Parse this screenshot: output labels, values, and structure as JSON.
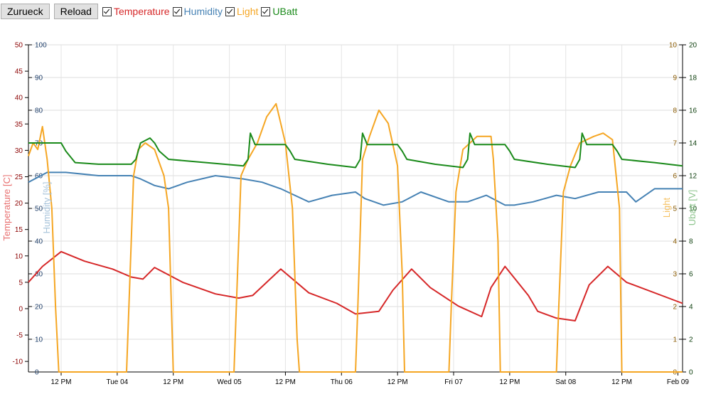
{
  "toolbar": {
    "back_label": "Zurueck",
    "reload_label": "Reload",
    "series_toggles": [
      {
        "label": "Temperature",
        "color": "#d62728",
        "checked": true
      },
      {
        "label": "Humidity",
        "color": "#4682b4",
        "checked": true
      },
      {
        "label": "Light",
        "color": "#f5a623",
        "checked": true
      },
      {
        "label": "UBatt",
        "color": "#1a8a1a",
        "checked": true
      }
    ]
  },
  "chart_data": {
    "type": "line",
    "x_tick_labels": [
      "12 PM",
      "Tue 04",
      "12 PM",
      "Wed 05",
      "12 PM",
      "Thu 06",
      "12 PM",
      "Fri 07",
      "12 PM",
      "Sat 08",
      "12 PM",
      "Feb 09"
    ],
    "axes": {
      "temperature": {
        "label": "Temperature [C]",
        "color": "#d62728",
        "range": [
          -12,
          50
        ],
        "ticks": [
          -10,
          -5,
          0,
          5,
          10,
          15,
          20,
          25,
          30,
          35,
          40,
          45,
          50
        ]
      },
      "humidity": {
        "label": "Humidity [%]",
        "color": "#4682b4",
        "range": [
          0,
          100
        ],
        "ticks": [
          0,
          10,
          20,
          30,
          40,
          50,
          60,
          70,
          80,
          90,
          100
        ]
      },
      "light": {
        "label": "Light",
        "color": "#f5a623",
        "range": [
          0,
          10
        ],
        "ticks": [
          0,
          1,
          2,
          3,
          4,
          5,
          6,
          7,
          8,
          9,
          10
        ]
      },
      "ubatt": {
        "label": "Ubatt [V]",
        "color": "#1a8a1a",
        "range": [
          0,
          20
        ],
        "ticks": [
          0,
          2,
          4,
          6,
          8,
          10,
          12,
          14,
          16,
          18,
          20
        ]
      }
    },
    "x_range_hours": [
      0,
      140
    ],
    "series": [
      {
        "name": "Temperature",
        "axis": "temperature",
        "color": "#d62728",
        "x": [
          0,
          3,
          7,
          12,
          18,
          22,
          24.5,
          27,
          33,
          40,
          45,
          48,
          51,
          54,
          60,
          66,
          70,
          75,
          78,
          82,
          86,
          92,
          97,
          99,
          102,
          107,
          109,
          113,
          117,
          120,
          124,
          128,
          140
        ],
        "y": [
          5,
          8,
          10.8,
          9,
          7.5,
          6,
          5.6,
          7.8,
          5,
          2.8,
          2,
          2.5,
          5,
          7.5,
          3,
          1,
          -1,
          -0.5,
          3.5,
          7.5,
          4,
          0.5,
          -1.5,
          4,
          8,
          2.5,
          -0.5,
          -1.8,
          -2.3,
          4.5,
          8,
          5,
          1
        ]
      },
      {
        "name": "Humidity",
        "axis": "humidity",
        "color": "#4682b4",
        "x": [
          0,
          4,
          8,
          15,
          22,
          24,
          27,
          30,
          34,
          40,
          46,
          50,
          54,
          57,
          60,
          65,
          70,
          72,
          76,
          80,
          84,
          90,
          94,
          98,
          102,
          104,
          108,
          113,
          117,
          122,
          128,
          130,
          134,
          140
        ],
        "y": [
          58,
          61,
          61,
          60,
          60,
          59,
          57,
          56,
          58,
          60,
          59,
          58,
          56,
          54,
          52,
          54,
          55,
          53,
          51,
          52,
          55,
          52,
          52,
          54,
          51,
          51,
          52,
          54,
          53,
          55,
          55,
          52,
          56,
          56
        ]
      },
      {
        "name": "Light",
        "axis": "light",
        "color": "#f5a623",
        "x": [
          0,
          1,
          2,
          3,
          4,
          5,
          5.8,
          6.5,
          21,
          21.5,
          22.5,
          23.5,
          25,
          27,
          29,
          30,
          31,
          44,
          44.5,
          45.5,
          47,
          49,
          51,
          53,
          55,
          56.5,
          57.5,
          58,
          70,
          70.5,
          71.5,
          73,
          75,
          77,
          79,
          80,
          80.5,
          90,
          90.5,
          91.5,
          93,
          96,
          99,
          99.5,
          100.5,
          101,
          113,
          113.5,
          114.5,
          116,
          118,
          121,
          123,
          125,
          126.5,
          127,
          140
        ],
        "y": [
          6.6,
          7,
          6.8,
          7.5,
          6.5,
          5,
          2,
          0,
          0,
          2,
          6,
          6.8,
          7,
          6.8,
          6,
          5,
          0,
          0,
          2,
          6,
          6.5,
          7,
          7.8,
          8.2,
          7,
          5,
          1,
          0,
          0,
          2,
          6.5,
          7.2,
          8,
          7.6,
          6.3,
          3,
          0,
          0,
          2,
          5.5,
          6.8,
          7.2,
          7.2,
          6.5,
          4,
          0,
          0,
          2,
          5.5,
          6.3,
          7,
          7.2,
          7.3,
          7.1,
          5,
          0,
          0
        ]
      },
      {
        "name": "UBatt",
        "axis": "ubatt",
        "color": "#1a8a1a",
        "x": [
          0,
          4,
          7,
          8,
          10,
          15,
          22,
          23,
          24,
          26,
          27,
          28,
          30,
          38,
          46,
          47,
          47.5,
          48.5,
          55,
          56,
          57,
          64,
          70,
          71,
          71.5,
          72.5,
          79,
          80,
          81,
          87,
          93,
          94,
          94.5,
          95.5,
          102,
          103,
          104,
          111,
          117,
          118,
          118.5,
          119.5,
          125,
          126,
          127,
          134,
          140
        ],
        "y": [
          14,
          14,
          14,
          13.5,
          12.8,
          12.7,
          12.7,
          13,
          14,
          14.3,
          14,
          13.5,
          13,
          12.8,
          12.6,
          13,
          14.6,
          13.9,
          13.9,
          13.5,
          13,
          12.7,
          12.5,
          13,
          14.6,
          13.9,
          13.9,
          13.5,
          13,
          12.7,
          12.5,
          13,
          14.6,
          13.9,
          13.9,
          13.5,
          13,
          12.7,
          12.5,
          13,
          14.6,
          13.9,
          13.9,
          13.5,
          13,
          12.8,
          12.6
        ]
      }
    ]
  }
}
